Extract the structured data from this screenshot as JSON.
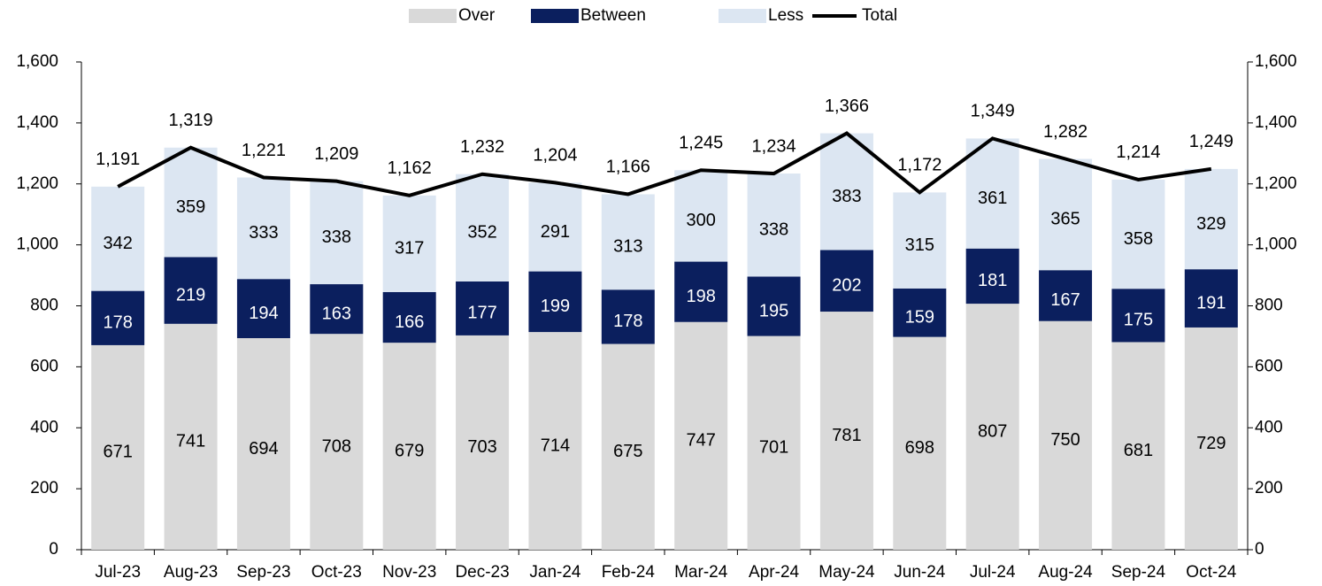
{
  "chart_data": {
    "type": "stacked-bar-line",
    "categories": [
      "Jul-23",
      "Aug-23",
      "Sep-23",
      "Oct-23",
      "Nov-23",
      "Dec-23",
      "Jan-24",
      "Feb-24",
      "Mar-24",
      "Apr-24",
      "May-24",
      "Jun-24",
      "Jul-24",
      "Aug-24",
      "Sep-24",
      "Oct-24"
    ],
    "series": [
      {
        "name": "Over",
        "type": "bar",
        "color": "#d9d9d9",
        "values": [
          671,
          741,
          694,
          708,
          679,
          703,
          714,
          675,
          747,
          701,
          781,
          698,
          807,
          750,
          681,
          729
        ]
      },
      {
        "name": "Between",
        "type": "bar",
        "color": "#0b1f5e",
        "values": [
          178,
          219,
          194,
          163,
          166,
          177,
          199,
          178,
          198,
          195,
          202,
          159,
          181,
          167,
          175,
          191
        ]
      },
      {
        "name": "Less",
        "type": "bar",
        "color": "#dce6f2",
        "values": [
          342,
          359,
          333,
          338,
          317,
          352,
          291,
          313,
          300,
          338,
          383,
          315,
          361,
          365,
          358,
          329
        ]
      },
      {
        "name": "Total",
        "type": "line",
        "axis": "y2",
        "color": "#000000",
        "values": [
          1191,
          1319,
          1221,
          1209,
          1162,
          1232,
          1204,
          1166,
          1245,
          1234,
          1366,
          1172,
          1349,
          1282,
          1214,
          1249
        ],
        "value_labels": [
          "1,191",
          "1,319",
          "1,221",
          "1,209",
          "1,162",
          "1,232",
          "1,204",
          "1,166",
          "1,245",
          "1,234",
          "1,366",
          "1,172",
          "1,349",
          "1,282",
          "1,214",
          "1,249"
        ]
      }
    ],
    "ylim": [
      0,
      1600
    ],
    "yticks": [
      0,
      200,
      400,
      600,
      800,
      {
        "value": 1000,
        "label": "1,000"
      },
      {
        "value": 1200,
        "label": "1,200"
      },
      {
        "value": 1400,
        "label": "1,400"
      },
      {
        "value": 1600,
        "label": "1,600"
      }
    ],
    "y2lim": [
      0,
      1600
    ],
    "y2ticks": [
      0,
      200,
      400,
      600,
      800,
      {
        "value": 1000,
        "label": "1,000"
      },
      {
        "value": 1200,
        "label": "1,200"
      },
      {
        "value": 1400,
        "label": "1,400"
      },
      {
        "value": 1600,
        "label": "1,600"
      }
    ],
    "legend": "top"
  }
}
